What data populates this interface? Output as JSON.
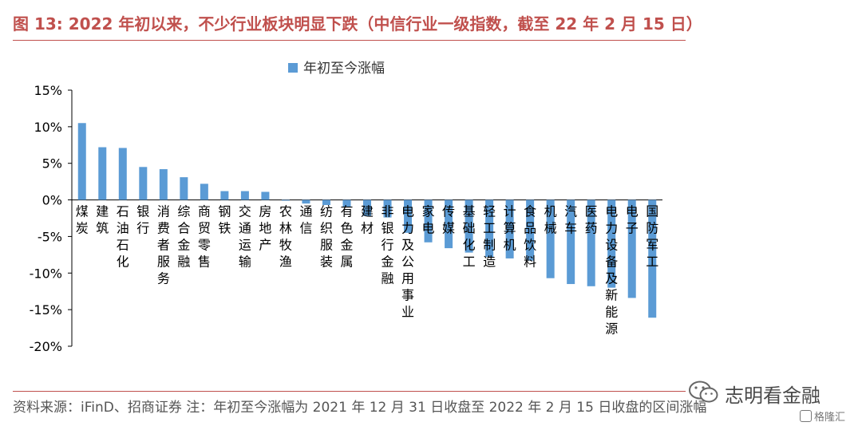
{
  "header": {
    "title": "图 13: 2022 年初以来，不少行业板块明显下跌（中信行业一级指数，截至 22 年 2 月 15 日）"
  },
  "footer": {
    "source": "资料来源：iFinD、招商证券 注：年初至今涨幅为 2021 年 12 月 31 日收盘至 2022 年 2 月 15 日收盘的区间涨幅"
  },
  "watermark": {
    "text": "志明看金融",
    "logo_text": "格隆汇"
  },
  "colors": {
    "accent": "#c0504d",
    "bar": "#5b9bd5",
    "axis": "#000000"
  },
  "chart_data": {
    "type": "bar",
    "title": "",
    "xlabel": "",
    "ylabel": "",
    "ylim": [
      -20,
      15
    ],
    "y_ticks": [
      15,
      10,
      5,
      0,
      -5,
      -10,
      -15,
      -20
    ],
    "y_tick_labels": [
      "15%",
      "10%",
      "5%",
      "0%",
      "-5%",
      "-10%",
      "-15%",
      "-20%"
    ],
    "grid": false,
    "legend_position": "top",
    "categories": [
      "煤炭",
      "建筑",
      "石油石化",
      "银行",
      "消费者服务",
      "综合金融",
      "商贸零售",
      "钢铁",
      "交通运输",
      "房地产",
      "农林牧渔",
      "通信",
      "纺织服装",
      "有色金属",
      "建材",
      "非银行金融",
      "电力及公用事业",
      "家电",
      "传媒",
      "基础化工",
      "轻工制造",
      "计算机",
      "食品饮料",
      "机械",
      "汽车",
      "医药",
      "电力设备及新能源",
      "电子",
      "国防军工"
    ],
    "series": [
      {
        "name": "年初至今涨幅",
        "values": [
          10.5,
          7.2,
          7.1,
          4.5,
          4.2,
          3.1,
          2.2,
          1.2,
          1.2,
          1.1,
          -0.1,
          -0.5,
          -0.7,
          -1.0,
          -2.2,
          -2.4,
          -4.5,
          -5.8,
          -6.6,
          -7.2,
          -7.8,
          -8.0,
          -8.3,
          -10.7,
          -11.5,
          -11.8,
          -12.0,
          -13.4,
          -16.1
        ]
      }
    ]
  }
}
